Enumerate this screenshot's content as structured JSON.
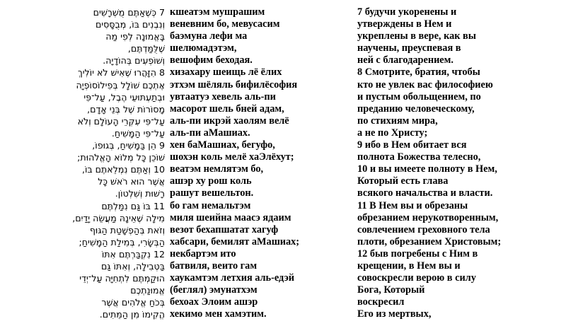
{
  "page": {
    "background_color": "#ffffff",
    "text_color": "#000000"
  },
  "visible_verse_numbers": [
    "7",
    "8",
    "9",
    "10",
    "11",
    "12"
  ],
  "columns": {
    "hebrew": {
      "direction": "rtl",
      "lines": [
        "7 כְּשֶׁאַתֶּם מֻשְׁרָשִׁים",
        "וְנִבְנִים בּוֹ, מְבֻסָּסִים",
        "בָּאֱמוּנָה לְפִי מַה",
        "שֶׁלֻּמַּדְתֶּם,",
        "וְשׁוֹפְעִים בְּהוֹדָיָה.",
        "8 הִזָּהֲרוּ שֶׁאִישׁ לֹא יוֹלִיךְ",
        "אֶתְכֶם שׁוֹלָל בְּפִילוֹסוֹפְיָה",
        "וּבְתַעְתּוּעֵי הֶבֶל, עַל־פִּי",
        "מָסוֹרוֹת שֶׁל בְּנֵי אָדָם,",
        "עַל־פִּי עִקְּרֵי הָעוֹלָם וְלֹא",
        "עַל־פִּי הַמָּשִׁיחַ.",
        "9 הֵן בַּמָּשִׁיחַ, בְּגוּפוֹ,",
        "שׁוֹכֵן כָּל מְלוֹא הָאֱלֹהוּת;",
        "10 וְאַתֶּם נִמְלֵאתֶם בּוֹ,",
        "אֲשֶׁר הוּא רֹאשׁ כָּל",
        "רָשׁוּת וְשִׁלְטוֹן.",
        "11 בּוֹ גַּם נִמַּלְתֶּם",
        "מִילָה שֶׁאֵינָהּ מַעֲשֵׂה יָדַיִם,",
        "וְזֹאת בְּהַפְשָׁטַת הַגּוּף",
        "הַבְּשָׂרִי, בְּמִילַת הַמָּשִׁיחַ;",
        "12 נִקְבַּרְתֶּם אִתּוֹ",
        "בַּטְּבִילָה, וְאִתּוֹ גַּם",
        "הוּקַמְתֶּם לִתְחִיָּה עַל־יְדֵי",
        "אֱמוּנַתְכֶם",
        "בְּכֹחַ אֱלֹהִים אֲשֶׁר",
        "הֱקִימוֹ מִן הַמֵּתִים."
      ]
    },
    "transliteration": {
      "lines": [
        "кшеатэм мушрашим",
        "веневним бо, мевусасим",
        "баэмуна лефи ма",
        "шелюмадэтэм,",
        "вешофим беходая.",
        "хизахару шеищь лё ёлих",
        "этхэм шёляль бифилёсофия",
        "увтаатуэ хевель аль-пи",
        "масорот шель бней адам,",
        "аль-пи икрэй хаолям велё",
        "аль-пи аМашиах.",
        "хен баМашиах, бегуфо,",
        "шохэн коль мелё хаЭлёхут;",
        "веатэм немлятэм бо,",
        "ашэр ху рош коль",
        "рашут вешельтон.",
        "бо гам немальтэм",
        "миля шеийна маасэ ядаим",
        "везот бехапшатат хагуф",
        "хабсари, бемилят аМашиах;",
        "некбартэм ито",
        "батвиля, веито гам",
        "хаукамтэм летхия аль-едэй",
        "(беглял) эмунатхэм",
        "бехоах Элоим ашэр",
        "хекимо мен хамэтим."
      ]
    },
    "translation_russian": {
      "lines": [
        "7 будучи укоренены и",
        "утверждены в Нем и",
        "укреплены в вере, как вы",
        "научены, преуспевая в",
        "ней с благодарением.",
        "8 Смотрите, братия, чтобы",
        "кто не увлек вас философиею",
        "и пустым обольщением, по",
        "преданию человеческому,",
        "по стихиям мира,",
        "а не по Христу;",
        "9 ибо в Нем обитает вся",
        "полнота Божества телесно,",
        "10 и вы имеете полноту в Нем,",
        "Который есть глава",
        "всякого начальства и власти.",
        "11 В Нем вы и обрезаны",
        "обрезанием нерукотворенным,",
        "совлечением греховного тела",
        "плоти, обрезанием Христовым;",
        "12 быв погребены с Ним в",
        "крещении, в Нем вы и",
        "совоскресли верою в силу",
        "Бога, Который",
        "воскресил",
        "Его из мертвых,"
      ]
    }
  }
}
